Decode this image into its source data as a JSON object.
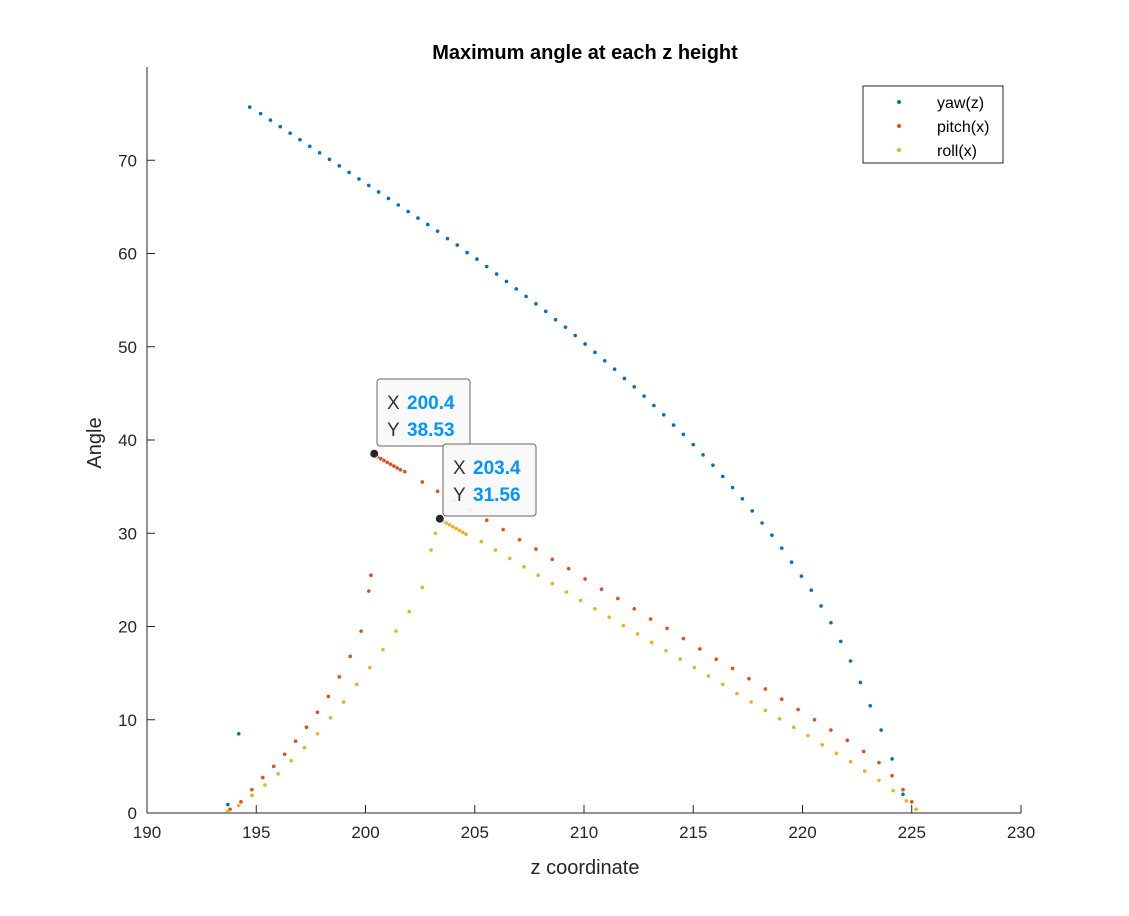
{
  "chart_data": {
    "type": "scatter",
    "title": "Maximum angle at each z height",
    "xlabel": "z coordinate",
    "ylabel": "Angle",
    "xlim": [
      190,
      230
    ],
    "ylim": [
      0,
      80
    ],
    "xticks": [
      190,
      195,
      200,
      205,
      210,
      215,
      220,
      225,
      230
    ],
    "yticks": [
      0,
      10,
      20,
      30,
      40,
      50,
      60,
      70
    ],
    "grid": false,
    "legend_position": "top-right",
    "series": [
      {
        "name": "yaw(z)",
        "color": "#0072BD",
        "points": [
          [
            193.7,
            0.9
          ],
          [
            194.2,
            8.5
          ],
          [
            194.7,
            75.7
          ],
          [
            195.2,
            75.0
          ],
          [
            195.65,
            74.3
          ],
          [
            196.1,
            73.6
          ],
          [
            196.55,
            72.9
          ],
          [
            197.0,
            72.2
          ],
          [
            197.45,
            71.5
          ],
          [
            197.9,
            70.8
          ],
          [
            198.35,
            70.1
          ],
          [
            198.8,
            69.4
          ],
          [
            199.25,
            68.7
          ],
          [
            199.7,
            68.0
          ],
          [
            200.15,
            67.3
          ],
          [
            200.6,
            66.6
          ],
          [
            201.05,
            65.9
          ],
          [
            201.5,
            65.2
          ],
          [
            201.95,
            64.5
          ],
          [
            202.4,
            63.8
          ],
          [
            202.85,
            63.1
          ],
          [
            203.3,
            62.4
          ],
          [
            203.75,
            61.6
          ],
          [
            204.2,
            60.9
          ],
          [
            204.65,
            60.1
          ],
          [
            205.1,
            59.4
          ],
          [
            205.55,
            58.6
          ],
          [
            206.0,
            57.8
          ],
          [
            206.45,
            57.0
          ],
          [
            206.9,
            56.2
          ],
          [
            207.35,
            55.4
          ],
          [
            207.8,
            54.6
          ],
          [
            208.25,
            53.8
          ],
          [
            208.7,
            52.9
          ],
          [
            209.15,
            52.1
          ],
          [
            209.6,
            51.2
          ],
          [
            210.05,
            50.3
          ],
          [
            210.5,
            49.4
          ],
          [
            210.95,
            48.5
          ],
          [
            211.4,
            47.6
          ],
          [
            211.85,
            46.6
          ],
          [
            212.3,
            45.7
          ],
          [
            212.75,
            44.7
          ],
          [
            213.2,
            43.7
          ],
          [
            213.65,
            42.7
          ],
          [
            214.1,
            41.6
          ],
          [
            214.55,
            40.6
          ],
          [
            215.0,
            39.5
          ],
          [
            215.45,
            38.4
          ],
          [
            215.9,
            37.3
          ],
          [
            216.35,
            36.1
          ],
          [
            216.8,
            34.9
          ],
          [
            217.25,
            33.7
          ],
          [
            217.7,
            32.4
          ],
          [
            218.15,
            31.1
          ],
          [
            218.6,
            29.8
          ],
          [
            219.05,
            28.4
          ],
          [
            219.5,
            26.9
          ],
          [
            219.95,
            25.4
          ],
          [
            220.4,
            23.9
          ],
          [
            220.85,
            22.2
          ],
          [
            221.3,
            20.4
          ],
          [
            221.75,
            18.4
          ],
          [
            222.2,
            16.3
          ],
          [
            222.65,
            14.0
          ],
          [
            223.1,
            11.5
          ],
          [
            223.6,
            8.9
          ],
          [
            224.1,
            5.8
          ],
          [
            224.6,
            2.0
          ]
        ]
      },
      {
        "name": "pitch(x)",
        "color": "#D95319",
        "points": [
          [
            193.8,
            0.4
          ],
          [
            194.3,
            1.2
          ],
          [
            194.8,
            2.5
          ],
          [
            195.3,
            3.8
          ],
          [
            195.8,
            5.0
          ],
          [
            196.3,
            6.3
          ],
          [
            196.8,
            7.7
          ],
          [
            197.3,
            9.2
          ],
          [
            197.8,
            10.8
          ],
          [
            198.3,
            12.5
          ],
          [
            198.8,
            14.6
          ],
          [
            199.3,
            16.8
          ],
          [
            199.8,
            19.5
          ],
          [
            200.15,
            23.8
          ],
          [
            200.25,
            25.5
          ],
          [
            200.4,
            38.53
          ],
          [
            200.55,
            38.2
          ],
          [
            200.7,
            38.0
          ],
          [
            200.85,
            37.8
          ],
          [
            201.0,
            37.6
          ],
          [
            201.15,
            37.4
          ],
          [
            201.3,
            37.2
          ],
          [
            201.45,
            37.0
          ],
          [
            201.6,
            36.8
          ],
          [
            201.8,
            36.6
          ],
          [
            202.6,
            35.5
          ],
          [
            203.3,
            34.5
          ],
          [
            204.05,
            33.5
          ],
          [
            204.8,
            32.5
          ],
          [
            205.55,
            31.4
          ],
          [
            206.3,
            30.4
          ],
          [
            207.05,
            29.3
          ],
          [
            207.8,
            28.3
          ],
          [
            208.55,
            27.2
          ],
          [
            209.3,
            26.2
          ],
          [
            210.05,
            25.1
          ],
          [
            210.8,
            24.0
          ],
          [
            211.55,
            23.0
          ],
          [
            212.3,
            21.9
          ],
          [
            213.05,
            20.8
          ],
          [
            213.8,
            19.8
          ],
          [
            214.55,
            18.7
          ],
          [
            215.3,
            17.6
          ],
          [
            216.05,
            16.5
          ],
          [
            216.8,
            15.5
          ],
          [
            217.55,
            14.4
          ],
          [
            218.3,
            13.3
          ],
          [
            219.05,
            12.2
          ],
          [
            219.8,
            11.1
          ],
          [
            220.55,
            10.0
          ],
          [
            221.3,
            8.9
          ],
          [
            222.05,
            7.8
          ],
          [
            222.8,
            6.6
          ],
          [
            223.5,
            5.4
          ],
          [
            224.1,
            4.0
          ],
          [
            224.6,
            2.5
          ],
          [
            225.0,
            1.2
          ]
        ]
      },
      {
        "name": "roll(x)",
        "color": "#EDB120",
        "points": [
          [
            193.7,
            0.2
          ],
          [
            194.2,
            0.8
          ],
          [
            194.8,
            1.9
          ],
          [
            195.4,
            3.0
          ],
          [
            196.0,
            4.2
          ],
          [
            196.6,
            5.6
          ],
          [
            197.2,
            7.0
          ],
          [
            197.8,
            8.5
          ],
          [
            198.4,
            10.2
          ],
          [
            199.0,
            11.9
          ],
          [
            199.6,
            13.8
          ],
          [
            200.2,
            15.6
          ],
          [
            200.8,
            17.5
          ],
          [
            201.4,
            19.5
          ],
          [
            202.0,
            21.6
          ],
          [
            202.6,
            24.2
          ],
          [
            203.0,
            28.2
          ],
          [
            203.2,
            30.0
          ],
          [
            203.4,
            31.56
          ],
          [
            203.55,
            31.3
          ],
          [
            203.7,
            31.1
          ],
          [
            203.85,
            30.9
          ],
          [
            204.0,
            30.7
          ],
          [
            204.15,
            30.5
          ],
          [
            204.3,
            30.3
          ],
          [
            204.45,
            30.1
          ],
          [
            204.6,
            29.9
          ],
          [
            205.3,
            29.1
          ],
          [
            205.95,
            28.2
          ],
          [
            206.6,
            27.3
          ],
          [
            207.25,
            26.4
          ],
          [
            207.9,
            25.5
          ],
          [
            208.55,
            24.6
          ],
          [
            209.2,
            23.7
          ],
          [
            209.85,
            22.8
          ],
          [
            210.5,
            21.9
          ],
          [
            211.15,
            21.0
          ],
          [
            211.8,
            20.1
          ],
          [
            212.45,
            19.2
          ],
          [
            213.1,
            18.3
          ],
          [
            213.75,
            17.4
          ],
          [
            214.4,
            16.5
          ],
          [
            215.05,
            15.6
          ],
          [
            215.7,
            14.7
          ],
          [
            216.35,
            13.8
          ],
          [
            217.0,
            12.8
          ],
          [
            217.65,
            11.9
          ],
          [
            218.3,
            11.0
          ],
          [
            218.95,
            10.1
          ],
          [
            219.6,
            9.2
          ],
          [
            220.25,
            8.3
          ],
          [
            220.9,
            7.3
          ],
          [
            221.55,
            6.4
          ],
          [
            222.2,
            5.5
          ],
          [
            222.85,
            4.5
          ],
          [
            223.5,
            3.5
          ],
          [
            224.15,
            2.4
          ],
          [
            224.75,
            1.3
          ],
          [
            225.2,
            0.4
          ]
        ]
      }
    ],
    "datatips": [
      {
        "x_label": "X",
        "x_value": "200.4",
        "y_label": "Y",
        "y_value": "38.53",
        "x": 200.4,
        "y": 38.53
      },
      {
        "x_label": "X",
        "x_value": "203.4",
        "y_label": "Y",
        "y_value": "31.56",
        "x": 203.4,
        "y": 31.56
      }
    ]
  }
}
